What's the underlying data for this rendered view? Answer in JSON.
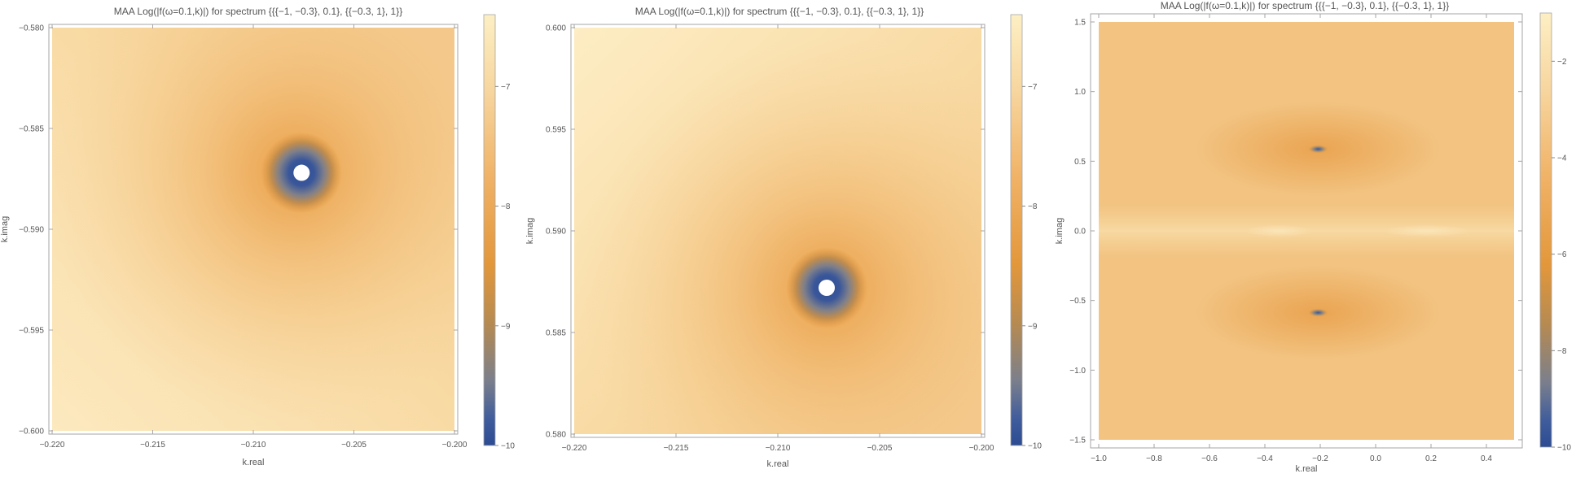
{
  "palette": {
    "c0": "#2c4b92",
    "c1": "#5a6f9e",
    "c2": "#8a8682",
    "c3": "#b58a52",
    "c4": "#e3973b",
    "c5": "#f0b266",
    "c6": "#f6cd92",
    "c7": "#fdefc4"
  },
  "chart_data": [
    {
      "type": "heatmap",
      "title": "MAA Log(|f(ω=0.1,k)|) for spectrum {{{−1, −0.3}, 0.1}, {{−0.3, 1}, 1}}",
      "xlabel": "k.real",
      "ylabel": "k.imag",
      "xlim": [
        -0.22,
        -0.2
      ],
      "ylim": [
        -0.6,
        -0.58
      ],
      "xticks": [
        -0.22,
        -0.215,
        -0.21,
        -0.205,
        -0.2
      ],
      "xtick_labels": [
        "−0.220",
        "−0.215",
        "−0.210",
        "−0.205",
        "−0.200"
      ],
      "yticks": [
        -0.58,
        -0.585,
        -0.59,
        -0.595,
        -0.6
      ],
      "ytick_labels": [
        "−0.580",
        "−0.585",
        "−0.590",
        "−0.595",
        "−0.600"
      ],
      "colorbar_range": [
        -10,
        -6.4
      ],
      "colorbar_ticks": [
        -7,
        -8,
        -9,
        -10
      ],
      "colorbar_tick_labels": [
        "−7",
        "−8",
        "−9",
        "−10"
      ],
      "features": [
        {
          "type": "pole",
          "x": -0.2076,
          "y": -0.5872
        }
      ]
    },
    {
      "type": "heatmap",
      "title": "MAA Log(|f(ω=0.1,k)|) for spectrum {{{−1, −0.3}, 0.1}, {{−0.3, 1}, 1}}",
      "xlabel": "k.real",
      "ylabel": "k.imag",
      "xlim": [
        -0.22,
        -0.2
      ],
      "ylim": [
        0.58,
        0.6
      ],
      "xticks": [
        -0.22,
        -0.215,
        -0.21,
        -0.205,
        -0.2
      ],
      "xtick_labels": [
        "−0.220",
        "−0.215",
        "−0.210",
        "−0.205",
        "−0.200"
      ],
      "yticks": [
        0.6,
        0.595,
        0.59,
        0.585,
        0.58
      ],
      "ytick_labels": [
        "0.600",
        "0.595",
        "0.590",
        "0.585",
        "0.580"
      ],
      "colorbar_range": [
        -10,
        -6.4
      ],
      "colorbar_ticks": [
        -7,
        -8,
        -9,
        -10
      ],
      "colorbar_tick_labels": [
        "−7",
        "−8",
        "−9",
        "−10"
      ],
      "features": [
        {
          "type": "pole",
          "x": -0.2076,
          "y": 0.5872
        }
      ]
    },
    {
      "type": "heatmap",
      "title": "MAA Log(|f(ω=0.1,k)|) for spectrum {{{−1, −0.3}, 0.1}, {{−0.3, 1}, 1}}",
      "xlabel": "k.real",
      "ylabel": "k.imag",
      "xlim": [
        -1.0,
        0.5
      ],
      "ylim": [
        -1.5,
        1.5
      ],
      "xticks": [
        -1.0,
        -0.8,
        -0.6,
        -0.4,
        -0.2,
        0.0,
        0.2,
        0.4
      ],
      "xtick_labels": [
        "−1.0",
        "−0.8",
        "−0.6",
        "−0.4",
        "−0.2",
        "0.0",
        "0.2",
        "0.4"
      ],
      "yticks": [
        1.5,
        1.0,
        0.5,
        0.0,
        -0.5,
        -1.0,
        -1.5
      ],
      "ytick_labels": [
        "1.5",
        "1.0",
        "0.5",
        "0.0",
        "−0.5",
        "−1.0",
        "−1.5"
      ],
      "colorbar_range": [
        -10,
        -1
      ],
      "colorbar_ticks": [
        -2,
        -4,
        -6,
        -8,
        -10
      ],
      "colorbar_tick_labels": [
        "−2",
        "−4",
        "−6",
        "−8",
        "−10"
      ],
      "features": [
        {
          "type": "pole",
          "x": -0.2076,
          "y": 0.5872
        },
        {
          "type": "pole",
          "x": -0.2076,
          "y": -0.5872
        }
      ]
    }
  ]
}
